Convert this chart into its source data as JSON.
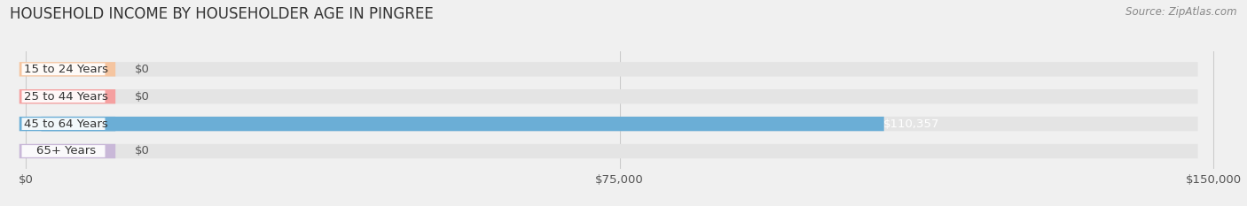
{
  "title": "HOUSEHOLD INCOME BY HOUSEHOLDER AGE IN PINGREE",
  "source": "Source: ZipAtlas.com",
  "categories": [
    "15 to 24 Years",
    "25 to 44 Years",
    "45 to 64 Years",
    "65+ Years"
  ],
  "values": [
    0,
    0,
    110357,
    0
  ],
  "bar_colors": [
    "#f5c5a0",
    "#f5a0a0",
    "#6baed6",
    "#c9b8d8"
  ],
  "xlim_max": 150000,
  "xticks": [
    0,
    75000,
    150000
  ],
  "xticklabels": [
    "$0",
    "$75,000",
    "$150,000"
  ],
  "value_labels": [
    "$0",
    "$0",
    "$110,357",
    "$0"
  ],
  "bg_color": "#f0f0f0",
  "bar_bg_color": "#e4e4e4",
  "title_fontsize": 12,
  "tick_fontsize": 9.5,
  "label_fontsize": 9.5,
  "value_fontsize": 9.5
}
